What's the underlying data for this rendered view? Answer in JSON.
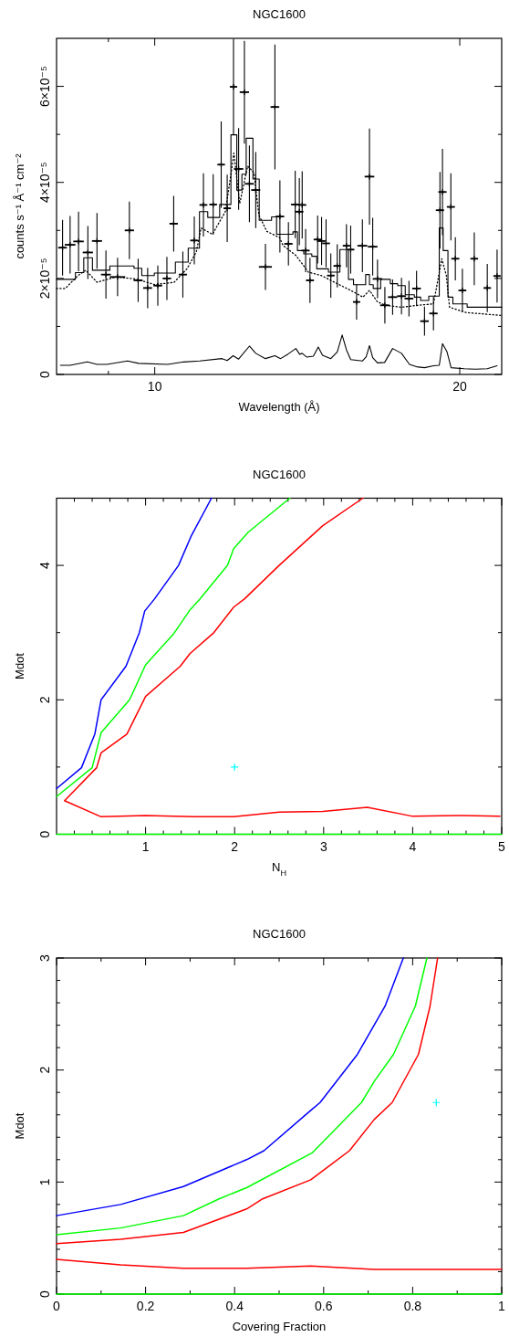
{
  "chart_data": [
    {
      "type": "line",
      "title": "NGC1600",
      "xlabel": "Wavelength (Å)",
      "ylabel": "counts s⁻¹ Å⁻¹ cm⁻²",
      "log": "x",
      "xlim": [
        8,
        22
      ],
      "xticks": [
        {
          "value": 9,
          "label": null
        },
        10,
        20
      ],
      "ylim": [
        0,
        7e-05
      ],
      "yticks": [
        0,
        {
          "value": 1e-05,
          "label": null
        },
        {
          "value": 2e-05,
          "label": "2×10⁻⁵"
        },
        {
          "value": 3e-05,
          "label": null
        },
        {
          "value": 4e-05,
          "label": "4×10⁻⁵"
        },
        {
          "value": 5e-05,
          "label": null
        },
        {
          "value": 6e-05,
          "label": "6×10⁻⁵"
        }
      ],
      "series": [
        {
          "type": "scatter",
          "marker": "cross",
          "color": "#000000",
          "x": [
            8.11,
            8.25,
            8.41,
            8.59,
            8.77,
            8.95,
            9.19,
            9.44,
            9.63,
            9.84,
            10.07,
            10.28,
            10.44,
            10.66,
            10.94,
            11.17,
            11.42,
            11.63,
            11.79,
            11.96,
            12.1,
            12.26,
            12.4,
            12.58,
            12.86,
            13.14,
            13.29,
            13.55,
            13.76,
            13.89,
            13.98,
            14.09,
            14.23,
            14.48,
            14.61,
            14.76,
            14.92,
            15.14,
            15.46,
            15.61,
            15.82,
            16.03,
            16.29,
            16.41,
            16.59,
            16.87,
            17.17,
            17.52,
            17.82,
            18.13,
            18.46,
            18.84,
            19.12,
            19.23,
            19.6,
            19.8,
            20.12,
            20.67,
            21.29,
            21.77
          ],
          "values": [
            2.64e-05,
            2.7e-05,
            2.77e-05,
            2.54e-05,
            2.78e-05,
            2.08e-05,
            2.03e-05,
            3e-05,
            1.96e-05,
            1.8e-05,
            1.85e-05,
            2e-05,
            3.14e-05,
            2.08e-05,
            2.79e-05,
            3.53e-05,
            3.54e-05,
            4.37e-05,
            3.46e-05,
            5.99e-05,
            4.28e-05,
            5.88e-05,
            3.97e-05,
            3.84e-05,
            2.24e-05,
            5.57e-05,
            3.29e-05,
            2.72e-05,
            3.54e-05,
            3.39e-05,
            3.53e-05,
            2.58e-05,
            1.96e-05,
            2.81e-05,
            2.78e-05,
            2.73e-05,
            2.06e-05,
            2.26e-05,
            2.68e-05,
            2.6e-05,
            1.51e-05,
            2.68e-05,
            4.12e-05,
            2.66e-05,
            1.99e-05,
            1.44e-05,
            1.61e-05,
            1.63e-05,
            1.58e-05,
            1.79e-05,
            1.11e-05,
            1.27e-05,
            3.42e-05,
            3.8e-05,
            3.49e-05,
            2.41e-05,
            1.75e-05,
            2.41e-05,
            1.8e-05,
            2.05e-05
          ],
          "errors": [
            5.8e-06,
            6e-06,
            6.2e-06,
            5.5e-06,
            5.8e-06,
            5e-06,
            4e-06,
            6e-06,
            4.5e-06,
            4.2e-06,
            4.2e-06,
            4.5e-06,
            5.8e-06,
            4.8e-06,
            5e-06,
            6.6e-06,
            6.3e-06,
            9e-06,
            7e-06,
            1e-05,
            8.5e-06,
            1.07e-05,
            8e-06,
            7.9e-06,
            4.8e-06,
            1.3e-05,
            7.5e-06,
            4.5e-06,
            7e-06,
            7e-06,
            7e-06,
            4.5e-06,
            4.7e-06,
            5e-06,
            5e-06,
            5e-06,
            4.6e-06,
            4.5e-06,
            4.5e-06,
            5e-06,
            3.7e-06,
            5.5e-06,
            1e-05,
            6e-06,
            4e-06,
            3.8e-06,
            3.7e-06,
            3.8e-06,
            3.7e-06,
            3.7e-06,
            3e-06,
            3.5e-06,
            8e-06,
            9e-06,
            7e-06,
            4.5e-06,
            4.5e-06,
            5.5e-06,
            5e-06,
            5.5e-06
          ],
          "xerrors": [
            0.08,
            0.1,
            0.1,
            0.1,
            0.1,
            0.1,
            0.16,
            0.1,
            0.1,
            0.1,
            0.1,
            0.1,
            0.1,
            0.1,
            0.1,
            0.1,
            0.1,
            0.1,
            0.1,
            0.1,
            0.13,
            0.13,
            0.13,
            0.13,
            0.19,
            0.13,
            0.13,
            0.13,
            0.13,
            0.13,
            0.13,
            0.13,
            0.13,
            0.13,
            0.13,
            0.13,
            0.13,
            0.13,
            0.13,
            0.13,
            0.13,
            0.18,
            0.18,
            0.18,
            0.18,
            0.18,
            0.18,
            0.18,
            0.18,
            0.18,
            0.18,
            0.18,
            0.18,
            0.18,
            0.18,
            0.18,
            0.18,
            0.18,
            0.18,
            0.18
          ]
        },
        {
          "type": "step",
          "color": "#000000",
          "x": [
            8.0,
            8.35,
            8.51,
            8.68,
            9.03,
            9.54,
            9.71,
            9.99,
            10.48,
            10.79,
            11.07,
            11.28,
            11.59,
            11.89,
            12.05,
            12.19,
            12.31,
            12.5,
            12.68,
            13.04,
            13.19,
            13.69,
            13.83,
            14.03,
            14.29,
            14.45,
            14.84,
            15.23,
            15.53,
            15.71,
            16.15,
            16.29,
            16.43,
            16.71,
            17.08,
            17.37,
            17.67,
            18.04,
            18.3,
            18.64,
            19.09,
            19.26,
            19.47,
            19.69,
            20.34,
            22.0
          ],
          "values": [
            1.98e-05,
            2.12e-05,
            2.43e-05,
            2.17e-05,
            2.26e-05,
            2.21e-05,
            2.06e-05,
            2.11e-05,
            2.34e-05,
            2.63e-05,
            3.39e-05,
            3.27e-05,
            3.54e-05,
            4.99e-05,
            3.84e-05,
            4.17e-05,
            4.92e-05,
            4.07e-05,
            3.21e-05,
            3.28e-05,
            2.92e-05,
            2.97e-05,
            2.58e-05,
            2.51e-05,
            2.46e-05,
            2.2e-05,
            2.13e-05,
            2.6e-05,
            1.98e-05,
            1.87e-05,
            2.08e-05,
            1.87e-05,
            1.79e-05,
            1.98e-05,
            1.89e-05,
            1.85e-05,
            1.66e-05,
            1.61e-05,
            1.54e-05,
            1.63e-05,
            3.05e-05,
            2.58e-05,
            1.61e-05,
            1.47e-05,
            1.4e-05,
            1.4e-05
          ]
        },
        {
          "line_style": "dotted",
          "color": "#000000",
          "x": [
            8.0,
            8.16,
            8.4,
            8.55,
            8.77,
            9.16,
            9.57,
            10.0,
            10.45,
            10.76,
            10.99,
            11.11,
            11.4,
            11.74,
            11.91,
            11.97,
            12.13,
            12.35,
            12.53,
            12.67,
            12.9,
            13.28,
            13.38,
            13.78,
            14.18,
            14.6,
            15.14,
            15.71,
            16.05,
            16.29,
            16.59,
            16.89,
            17.52,
            18.17,
            18.84,
            19.2,
            19.4,
            19.54,
            20.27,
            21.96
          ],
          "values": [
            1.79e-05,
            1.79e-05,
            2.06e-05,
            2.17e-05,
            1.92e-05,
            2.03e-05,
            1.99e-05,
            1.87e-05,
            1.92e-05,
            2.2e-05,
            2.55e-05,
            3.05e-05,
            2.92e-05,
            3.39e-05,
            4.27e-05,
            4.61e-05,
            3.56e-05,
            4.34e-05,
            4.2e-05,
            3.32e-05,
            2.98e-05,
            2.85e-05,
            2.69e-05,
            2.48e-05,
            2.13e-05,
            2.06e-05,
            1.89e-05,
            1.72e-05,
            1.61e-05,
            1.75e-05,
            1.51e-05,
            1.44e-05,
            1.4e-05,
            1.44e-05,
            1.47e-05,
            2.41e-05,
            2.06e-05,
            1.4e-05,
            1.29e-05,
            1.23e-05
          ]
        },
        {
          "color": "#000000",
          "x": [
            8.07,
            8.25,
            8.58,
            8.77,
            8.97,
            9.4,
            9.64,
            10.3,
            10.68,
            11.07,
            11.65,
            11.79,
            11.95,
            12.1,
            12.4,
            12.58,
            12.86,
            13.14,
            13.31,
            13.53,
            13.78,
            13.9,
            13.98,
            14.13,
            14.34,
            14.5,
            14.64,
            14.92,
            15.14,
            15.31,
            15.46,
            15.61,
            16.03,
            16.17,
            16.29,
            16.41,
            16.59,
            16.86,
            17.17,
            17.52,
            17.84,
            18.13,
            18.46,
            18.84,
            19.09,
            19.23,
            19.43,
            19.61,
            20.19,
            20.72,
            21.29,
            21.77
          ],
          "values": [
            1.9e-06,
            1.9e-06,
            2.6e-06,
            2.1e-06,
            2.1e-06,
            2.8e-06,
            2.3e-06,
            2.1e-06,
            2.6e-06,
            2.8e-06,
            3.3e-06,
            2.9e-06,
            3.9e-06,
            3.2e-06,
            5.9e-06,
            4.4e-06,
            3.3e-06,
            3.9e-06,
            3.3e-06,
            4.2e-06,
            5.4e-06,
            4.2e-06,
            4.4e-06,
            3.6e-06,
            3.8e-06,
            5.7e-06,
            4e-06,
            3.3e-06,
            4.7e-06,
            8.2e-06,
            5.1e-06,
            3.1e-06,
            2.8e-06,
            3.7e-06,
            6e-06,
            3.5e-06,
            2.4e-06,
            2.5e-06,
            5.4e-06,
            4.4e-06,
            2.1e-06,
            1.6e-06,
            1.4e-06,
            1.8e-06,
            1.9e-06,
            6.4e-06,
            4.7e-06,
            1.4e-06,
            1.2e-06,
            1.1e-06,
            1.2e-06,
            1.8e-06
          ]
        }
      ]
    },
    {
      "type": "line",
      "title": "NGC1600",
      "xlabel": "N$_{H}$",
      "ylabel": "Mdot",
      "xlim": [
        0,
        5
      ],
      "xticks": [
        {
          "value": 0.2,
          "label": null
        },
        {
          "value": 0.4,
          "label": null
        },
        {
          "value": 0.6,
          "label": null
        },
        {
          "value": 0.8,
          "label": null
        },
        1,
        {
          "value": 1.2,
          "label": null
        },
        {
          "value": 1.4,
          "label": null
        },
        {
          "value": 1.6,
          "label": null
        },
        {
          "value": 1.8,
          "label": null
        },
        2,
        {
          "value": 2.2,
          "label": null
        },
        {
          "value": 2.4,
          "label": null
        },
        {
          "value": 2.6,
          "label": null
        },
        {
          "value": 2.8,
          "label": null
        },
        3,
        {
          "value": 3.2,
          "label": null
        },
        {
          "value": 3.4,
          "label": null
        },
        {
          "value": 3.6,
          "label": null
        },
        {
          "value": 3.8,
          "label": null
        },
        4,
        {
          "value": 4.2,
          "label": null
        },
        {
          "value": 4.4,
          "label": null
        },
        {
          "value": 4.6,
          "label": null
        },
        {
          "value": 4.8,
          "label": null
        },
        5
      ],
      "ylim": [
        0,
        5
      ],
      "yticks": [
        0,
        {
          "value": 1,
          "label": null
        },
        2,
        {
          "value": 3,
          "label": null
        },
        4,
        {
          "value": 5,
          "label": null
        }
      ],
      "series": [
        {
          "color": "#0000ff",
          "x": [
            0,
            0.28,
            0.43,
            0.5,
            0.78,
            0.93,
            0.99,
            1.1,
            1.37,
            1.51,
            1.74
          ],
          "values": [
            0.68,
            0.99,
            1.49,
            2.0,
            2.5,
            3.0,
            3.32,
            3.5,
            4.0,
            4.43,
            5.0
          ]
        },
        {
          "color": "#00ff00",
          "x": [
            0,
            0.4,
            0.5,
            0.82,
            1.0,
            1.32,
            1.5,
            1.61,
            1.92,
            1.99,
            2.15,
            2.62
          ],
          "values": [
            0.56,
            0.99,
            1.51,
            2.0,
            2.52,
            2.99,
            3.34,
            3.5,
            4.0,
            4.25,
            4.49,
            5.0
          ]
        },
        {
          "color": "#00ff00",
          "x": [
            0,
            5
          ],
          "values": [
            0,
            0
          ]
        },
        {
          "color": "#ff0000",
          "x": [
            3.44,
            2.99,
            2.5,
            2.11,
            1.99,
            1.76,
            1.5,
            1.39,
            1.0,
            0.79,
            0.5,
            0.45,
            0.09,
            0.5,
            1.0,
            1.54,
            1.99,
            2.5,
            2.99,
            3.49,
            3.99,
            4.49,
            4.98
          ],
          "values": [
            5.0,
            4.59,
            4.0,
            3.5,
            3.38,
            2.99,
            2.69,
            2.5,
            2.05,
            1.49,
            1.21,
            0.99,
            0.5,
            0.26,
            0.28,
            0.26,
            0.26,
            0.33,
            0.34,
            0.4,
            0.27,
            0.28,
            0.27
          ]
        },
        {
          "type": "scatter",
          "marker": "cross",
          "color": "#00ffff",
          "x": [
            2
          ],
          "values": [
            1
          ]
        }
      ]
    },
    {
      "type": "line",
      "title": "NGC1600",
      "xlabel": "Covering Fraction",
      "ylabel": "Mdot",
      "xlim": [
        0,
        1
      ],
      "xticks": [
        0,
        {
          "value": 0.1,
          "label": null
        },
        0.2,
        {
          "value": 0.3,
          "label": null
        },
        0.4,
        {
          "value": 0.5,
          "label": null
        },
        0.6,
        {
          "value": 0.7,
          "label": null
        },
        0.8,
        {
          "value": 0.9,
          "label": null
        },
        1
      ],
      "ylim": [
        0,
        3
      ],
      "yticks": [
        0,
        {
          "value": 0.2,
          "label": null
        },
        {
          "value": 0.4,
          "label": null
        },
        {
          "value": 0.6,
          "label": null
        },
        {
          "value": 0.8,
          "label": null
        },
        1,
        {
          "value": 1.2,
          "label": null
        },
        {
          "value": 1.4,
          "label": null
        },
        {
          "value": 1.6,
          "label": null
        },
        {
          "value": 1.8,
          "label": null
        },
        2,
        {
          "value": 2.2,
          "label": null
        },
        {
          "value": 2.4,
          "label": null
        },
        {
          "value": 2.6,
          "label": null
        },
        {
          "value": 2.8,
          "label": null
        },
        3
      ],
      "series": [
        {
          "color": "#0000ff",
          "x": [
            0,
            0.144,
            0.285,
            0.427,
            0.466,
            0.571,
            0.592,
            0.676,
            0.738,
            0.779
          ],
          "values": [
            0.7,
            0.8,
            0.96,
            1.2,
            1.28,
            1.64,
            1.71,
            2.14,
            2.57,
            3.0
          ]
        },
        {
          "color": "#00ff00",
          "x": [
            0,
            0.144,
            0.285,
            0.365,
            0.427,
            0.574,
            0.685,
            0.714,
            0.757,
            0.806,
            0.832
          ],
          "values": [
            0.53,
            0.59,
            0.7,
            0.85,
            0.95,
            1.26,
            1.71,
            1.9,
            2.14,
            2.57,
            3.0
          ]
        },
        {
          "color": "#00ff00",
          "x": [
            0,
            1
          ],
          "values": [
            0,
            0
          ]
        },
        {
          "color": "#ff0000",
          "x": [
            0,
            0.144,
            0.285,
            0.427,
            0.463,
            0.571,
            0.658,
            0.714,
            0.754,
            0.813,
            0.839,
            0.856
          ],
          "values": [
            0.45,
            0.49,
            0.55,
            0.76,
            0.85,
            1.02,
            1.28,
            1.56,
            1.71,
            2.14,
            2.57,
            3.0
          ]
        },
        {
          "color": "#ff0000",
          "x": [
            0,
            0.144,
            0.285,
            0.427,
            0.571,
            0.714,
            1.0
          ],
          "values": [
            0.31,
            0.26,
            0.23,
            0.23,
            0.25,
            0.22,
            0.22
          ]
        },
        {
          "type": "scatter",
          "marker": "cross",
          "color": "#00ffff",
          "x": [
            0.853
          ],
          "values": [
            1.71
          ]
        }
      ]
    }
  ]
}
